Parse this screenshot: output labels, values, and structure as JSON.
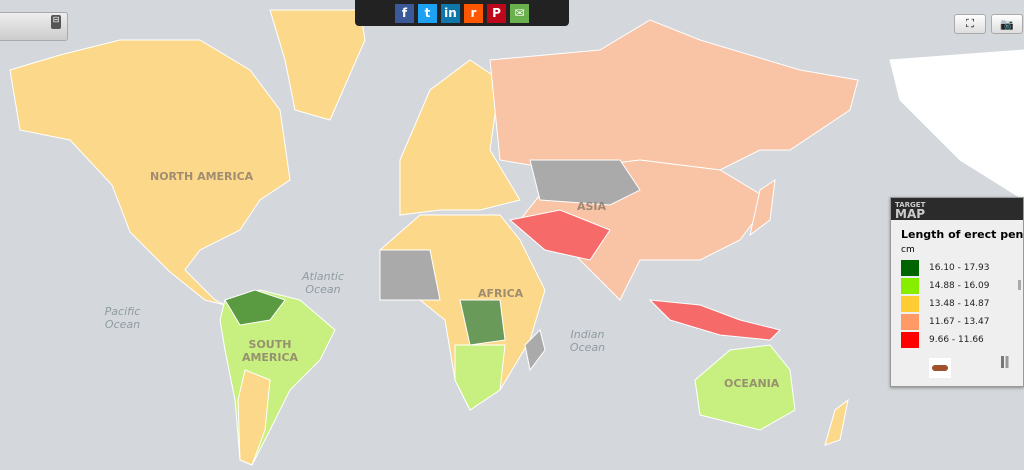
{
  "share": {
    "buttons": [
      {
        "icon": "facebook-icon",
        "glyph": "f",
        "color": "#3b5998"
      },
      {
        "icon": "twitter-icon",
        "glyph": "t",
        "color": "#1da1f2"
      },
      {
        "icon": "linkedin-icon",
        "glyph": "in",
        "color": "#0e76a8"
      },
      {
        "icon": "reddit-icon",
        "glyph": "r",
        "color": "#ff5700"
      },
      {
        "icon": "pinterest-icon",
        "glyph": "P",
        "color": "#bd081c"
      },
      {
        "icon": "email-icon",
        "glyph": "✉",
        "color": "#6ab04c"
      }
    ]
  },
  "toolbar": {
    "fullscreen_glyph": "⛶",
    "camera_glyph": "📷"
  },
  "map": {
    "continents": [
      "NORTH AMERICA",
      "SOUTH AMERICA",
      "AFRICA",
      "ASIA",
      "OCEANIA"
    ],
    "oceans": [
      "Atlantic Ocean",
      "Pacific Ocean",
      "Indian Ocean"
    ]
  },
  "legend": {
    "brand_top": "TARGET",
    "brand_bottom": "MAP",
    "title": "Length of erect penis",
    "unit": "cm",
    "ranges": [
      {
        "label": "16.10 - 17.93",
        "color": "#006400"
      },
      {
        "label": "14.88 - 16.09",
        "color": "#88ee00"
      },
      {
        "label": "13.48 - 14.87",
        "color": "#ffcc33"
      },
      {
        "label": "11.67 - 13.47",
        "color": "#ff9966"
      },
      {
        "label": "9.66 - 11.66",
        "color": "#ff0000"
      }
    ]
  }
}
